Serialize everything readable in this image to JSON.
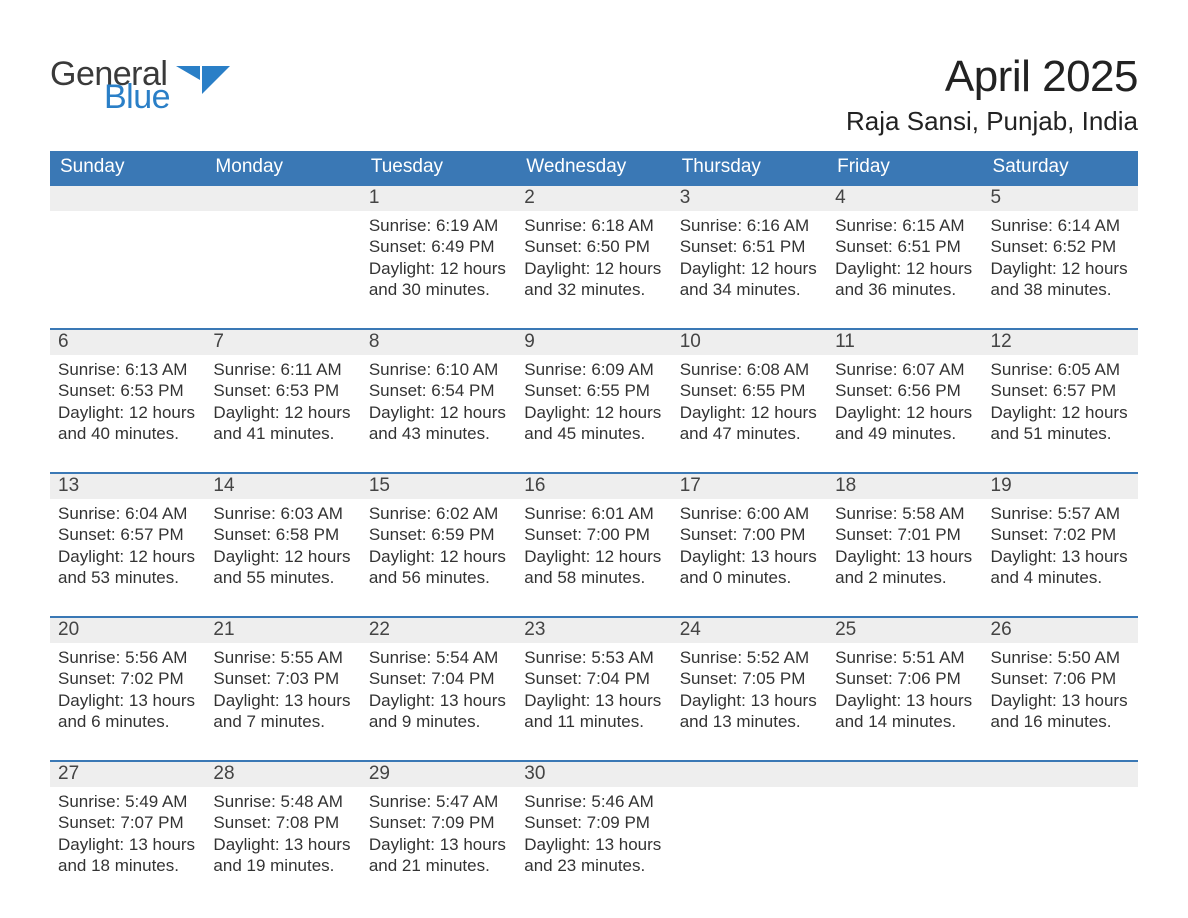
{
  "logo": {
    "part1": "General",
    "part2": "Blue"
  },
  "title": "April 2025",
  "location": "Raja Sansi, Punjab, India",
  "colors": {
    "header_blue": "#3a78b5",
    "accent_blue": "#1f6db3",
    "logo_dark": "#3a3a3a",
    "logo_blue": "#2a7fc7",
    "day_bg": "#eeeeee",
    "text": "#333333",
    "background": "#ffffff"
  },
  "weekdays": [
    "Sunday",
    "Monday",
    "Tuesday",
    "Wednesday",
    "Thursday",
    "Friday",
    "Saturday"
  ],
  "weeks": [
    [
      null,
      null,
      {
        "n": "1",
        "sunrise": "6:19 AM",
        "sunset": "6:49 PM",
        "daylight": "12 hours and 30 minutes."
      },
      {
        "n": "2",
        "sunrise": "6:18 AM",
        "sunset": "6:50 PM",
        "daylight": "12 hours and 32 minutes."
      },
      {
        "n": "3",
        "sunrise": "6:16 AM",
        "sunset": "6:51 PM",
        "daylight": "12 hours and 34 minutes."
      },
      {
        "n": "4",
        "sunrise": "6:15 AM",
        "sunset": "6:51 PM",
        "daylight": "12 hours and 36 minutes."
      },
      {
        "n": "5",
        "sunrise": "6:14 AM",
        "sunset": "6:52 PM",
        "daylight": "12 hours and 38 minutes."
      }
    ],
    [
      {
        "n": "6",
        "sunrise": "6:13 AM",
        "sunset": "6:53 PM",
        "daylight": "12 hours and 40 minutes."
      },
      {
        "n": "7",
        "sunrise": "6:11 AM",
        "sunset": "6:53 PM",
        "daylight": "12 hours and 41 minutes."
      },
      {
        "n": "8",
        "sunrise": "6:10 AM",
        "sunset": "6:54 PM",
        "daylight": "12 hours and 43 minutes."
      },
      {
        "n": "9",
        "sunrise": "6:09 AM",
        "sunset": "6:55 PM",
        "daylight": "12 hours and 45 minutes."
      },
      {
        "n": "10",
        "sunrise": "6:08 AM",
        "sunset": "6:55 PM",
        "daylight": "12 hours and 47 minutes."
      },
      {
        "n": "11",
        "sunrise": "6:07 AM",
        "sunset": "6:56 PM",
        "daylight": "12 hours and 49 minutes."
      },
      {
        "n": "12",
        "sunrise": "6:05 AM",
        "sunset": "6:57 PM",
        "daylight": "12 hours and 51 minutes."
      }
    ],
    [
      {
        "n": "13",
        "sunrise": "6:04 AM",
        "sunset": "6:57 PM",
        "daylight": "12 hours and 53 minutes."
      },
      {
        "n": "14",
        "sunrise": "6:03 AM",
        "sunset": "6:58 PM",
        "daylight": "12 hours and 55 minutes."
      },
      {
        "n": "15",
        "sunrise": "6:02 AM",
        "sunset": "6:59 PM",
        "daylight": "12 hours and 56 minutes."
      },
      {
        "n": "16",
        "sunrise": "6:01 AM",
        "sunset": "7:00 PM",
        "daylight": "12 hours and 58 minutes."
      },
      {
        "n": "17",
        "sunrise": "6:00 AM",
        "sunset": "7:00 PM",
        "daylight": "13 hours and 0 minutes."
      },
      {
        "n": "18",
        "sunrise": "5:58 AM",
        "sunset": "7:01 PM",
        "daylight": "13 hours and 2 minutes."
      },
      {
        "n": "19",
        "sunrise": "5:57 AM",
        "sunset": "7:02 PM",
        "daylight": "13 hours and 4 minutes."
      }
    ],
    [
      {
        "n": "20",
        "sunrise": "5:56 AM",
        "sunset": "7:02 PM",
        "daylight": "13 hours and 6 minutes."
      },
      {
        "n": "21",
        "sunrise": "5:55 AM",
        "sunset": "7:03 PM",
        "daylight": "13 hours and 7 minutes."
      },
      {
        "n": "22",
        "sunrise": "5:54 AM",
        "sunset": "7:04 PM",
        "daylight": "13 hours and 9 minutes."
      },
      {
        "n": "23",
        "sunrise": "5:53 AM",
        "sunset": "7:04 PM",
        "daylight": "13 hours and 11 minutes."
      },
      {
        "n": "24",
        "sunrise": "5:52 AM",
        "sunset": "7:05 PM",
        "daylight": "13 hours and 13 minutes."
      },
      {
        "n": "25",
        "sunrise": "5:51 AM",
        "sunset": "7:06 PM",
        "daylight": "13 hours and 14 minutes."
      },
      {
        "n": "26",
        "sunrise": "5:50 AM",
        "sunset": "7:06 PM",
        "daylight": "13 hours and 16 minutes."
      }
    ],
    [
      {
        "n": "27",
        "sunrise": "5:49 AM",
        "sunset": "7:07 PM",
        "daylight": "13 hours and 18 minutes."
      },
      {
        "n": "28",
        "sunrise": "5:48 AM",
        "sunset": "7:08 PM",
        "daylight": "13 hours and 19 minutes."
      },
      {
        "n": "29",
        "sunrise": "5:47 AM",
        "sunset": "7:09 PM",
        "daylight": "13 hours and 21 minutes."
      },
      {
        "n": "30",
        "sunrise": "5:46 AM",
        "sunset": "7:09 PM",
        "daylight": "13 hours and 23 minutes."
      },
      null,
      null,
      null
    ]
  ],
  "labels": {
    "sunrise": "Sunrise: ",
    "sunset": "Sunset: ",
    "daylight": "Daylight: "
  }
}
